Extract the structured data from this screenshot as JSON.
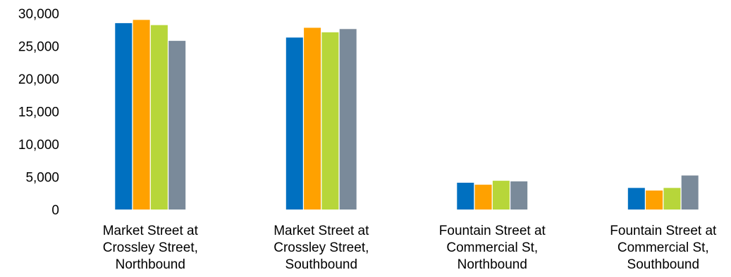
{
  "chart_data": {
    "type": "bar",
    "title": "",
    "xlabel": "",
    "ylabel": "",
    "ylim": [
      0,
      30000
    ],
    "yticks": [
      0,
      5000,
      10000,
      15000,
      20000,
      25000,
      30000
    ],
    "ytick_labels": [
      "0",
      "5,000",
      "10,000",
      "15,000",
      "20,000",
      "25,000",
      "30,000"
    ],
    "grid": false,
    "legend": "none",
    "categories": [
      [
        "Market Street at",
        "Crossley Street,",
        "Northbound"
      ],
      [
        "Market Street at",
        "Crossley Street,",
        "Southbound"
      ],
      [
        "Fountain Street at",
        "Commercial St,",
        "Northbound"
      ],
      [
        "Fountain Street at",
        "Commercial St,",
        "Southbound"
      ]
    ],
    "series": [
      {
        "color": "#0070c0",
        "values": [
          28500,
          26300,
          4100,
          3300
        ]
      },
      {
        "color": "#ffa100",
        "values": [
          29000,
          27800,
          3800,
          2900
        ]
      },
      {
        "color": "#b7d63a",
        "values": [
          28200,
          27100,
          4400,
          3300
        ]
      },
      {
        "color": "#7a8a9a",
        "values": [
          25800,
          27600,
          4300,
          5200
        ]
      }
    ]
  }
}
